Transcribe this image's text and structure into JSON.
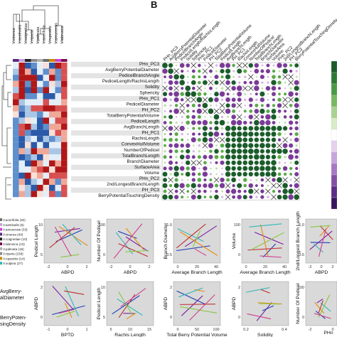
{
  "panel_label": "B",
  "heatmap": {
    "columns": [
      "V.cinerea",
      "V.aestivalis",
      "V.coignetiae",
      "V.riparia",
      "V.palmata",
      "V.acerifolia",
      "V.rupestris",
      "V.amurensis",
      "V.labrusca"
    ],
    "column_colors": [
      "#5a2a82",
      "#c8a0d8",
      "#222222",
      "#8a8a8a",
      "#b0b0b0",
      "#6c6c6c",
      "#cc8800",
      "#d040d0",
      "#7a1050"
    ],
    "rows": 22
  },
  "traits": [
    "PHn_PC3",
    "AvgBerryPotentialDiameter",
    "PedicelBranchAngle",
    "PedicelLength/RachisLength",
    "Solidity",
    "Sphericity",
    "PHn_PC1",
    "PedicelDiameter",
    "PH_PC2",
    "TotalBerryPotentialVolume",
    "PedicelLength",
    "AvgBranchLength",
    "PH_PC1",
    "RachisLength",
    "ConvexHullVolume",
    "NumberOfPedicel",
    "TotalBranchLength",
    "BranchDiameter",
    "SurfaceArea",
    "Volume",
    "PHn_PC2",
    "2nd/LongestBranchLength",
    "PH_PC3",
    "BerryPotentialTouchingDensity"
  ],
  "legend_species": [
    "V.acerifolia (32)",
    "V.aestivalis (5)",
    "V.amurensis (33)",
    "V.cinerea (40)",
    "V.coignetiae (10)",
    "V.labrusca (13)",
    "V.palmata (15)",
    "V.riparia (158)",
    "V.rupestris (14)",
    "V.vulpina (27)"
  ],
  "side_labels": [
    "AvgBerry-",
    "alDiameter",
    "BerryPoten-",
    "singDensity"
  ],
  "colors": {
    "pos_strong": "#1a5c2a",
    "pos": "#5aaa48",
    "pos_light": "#bfe0a8",
    "neg": "#7a3a98",
    "neg_light": "#d6b8e2",
    "panel_bg": "#d9d9d9",
    "line_series": [
      "#7b1fa2",
      "#1f3fb4",
      "#e88a10",
      "#30b8b8",
      "#c03030",
      "#88c840",
      "#d04090"
    ]
  },
  "chart_data": [
    {
      "type": "line",
      "xlabel": "ABPD",
      "ylabel": "Pedicel Length",
      "xticks": [
        "-2",
        "0",
        "2"
      ],
      "yticks": [
        "5",
        "10"
      ]
    },
    {
      "type": "line",
      "xlabel": "ABPD",
      "ylabel": "Number Of Pedicel",
      "xticks": [
        "-2",
        "0",
        "2"
      ],
      "yticks": [
        "0",
        "100"
      ]
    },
    {
      "type": "line",
      "xlabel": "Average Branch Length",
      "ylabel": "Branch Diameter",
      "xticks": [
        "0",
        "20",
        "40"
      ],
      "yticks": [
        "0.5",
        "1.0"
      ]
    },
    {
      "type": "line",
      "xlabel": "Average Branch Length",
      "ylabel": "Volume",
      "xticks": [
        "0",
        "20",
        "40"
      ],
      "yticks": [
        "0",
        "100"
      ]
    },
    {
      "type": "line",
      "xlabel": "ABPD",
      "ylabel": "2nd/Longest Branch Length",
      "xticks": [
        "-2",
        "0",
        "2"
      ],
      "yticks": [
        "0.5",
        "1.0"
      ]
    },
    {
      "type": "line",
      "xlabel": "BPTD",
      "ylabel": "ABPD",
      "xticks": [
        "-1",
        "0",
        "1"
      ],
      "yticks": [
        "0",
        "2"
      ]
    },
    {
      "type": "line",
      "xlabel": "Rachis Length",
      "ylabel": "Pedicel Length",
      "xticks": [
        "5",
        "10",
        "15"
      ],
      "yticks": [
        "5",
        "10"
      ]
    },
    {
      "type": "line",
      "xlabel": "Total Berry Potential Volume",
      "ylabel": "ABPD",
      "xticks": [
        "0",
        "50",
        "100"
      ],
      "yticks": [
        "0",
        "2"
      ]
    },
    {
      "type": "line",
      "xlabel": "Solidity",
      "ylabel": "ABPD",
      "xticks": [
        "0.2",
        "0.4"
      ],
      "yticks": [
        "0",
        "2"
      ]
    },
    {
      "type": "line",
      "xlabel": "",
      "ylabel": "Number Of Pedicel",
      "xticks": [
        "-2",
        "0"
      ],
      "yticks": [
        "0",
        "100"
      ]
    },
    {
      "type": "line",
      "xlabel": "PHn",
      "ylabel": "",
      "xticks": [],
      "yticks": []
    }
  ]
}
